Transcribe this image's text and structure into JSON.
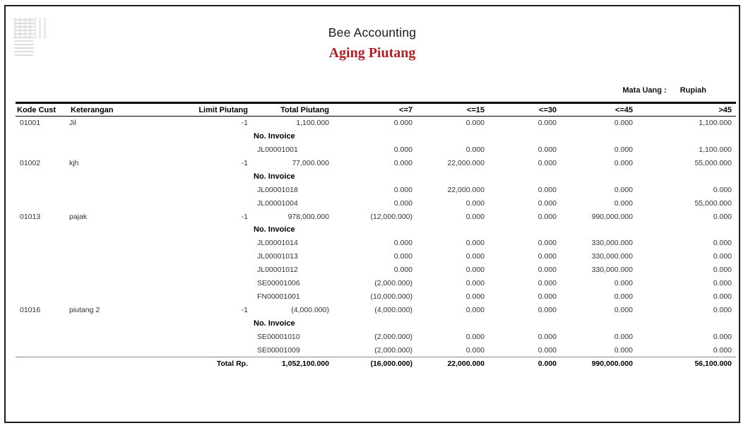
{
  "page": {
    "company": "Bee Accounting",
    "report_title": "Aging Piutang",
    "currency_label": "Mata Uang :",
    "currency_value": "Rupiah",
    "invoice_section_label": "No. Invoice"
  },
  "colors": {
    "report_title_red": "#b01f24",
    "text": "#333333",
    "rule_black": "#000000",
    "rule_gray": "#8a8a8a"
  },
  "table": {
    "headers": [
      "Kode Cust",
      "Keterangan",
      "Limit Piutang",
      "Total Piutang",
      "<=7",
      "<=15",
      "<=30",
      "<=45",
      ">45"
    ],
    "customers": [
      {
        "code": "01001",
        "name": "Jil",
        "limit": "-1",
        "total": "1,100.000",
        "aging": [
          "0.000",
          "0.000",
          "0.000",
          "0.000",
          "1,100.000"
        ],
        "invoices": [
          {
            "no": "JL00001001",
            "aging": [
              "0.000",
              "0.000",
              "0.000",
              "0.000",
              "1,100.000"
            ]
          }
        ]
      },
      {
        "code": "01002",
        "name": "kjh",
        "limit": "-1",
        "total": "77,000.000",
        "aging": [
          "0.000",
          "22,000.000",
          "0.000",
          "0.000",
          "55,000.000"
        ],
        "invoices": [
          {
            "no": "JL00001018",
            "aging": [
              "0.000",
              "22,000.000",
              "0.000",
              "0.000",
              "0.000"
            ]
          },
          {
            "no": "JL00001004",
            "aging": [
              "0.000",
              "0.000",
              "0.000",
              "0.000",
              "55,000.000"
            ]
          }
        ]
      },
      {
        "code": "01013",
        "name": "pajak",
        "limit": "-1",
        "total": "978,000.000",
        "aging": [
          "(12,000.000)",
          "0.000",
          "0.000",
          "990,000.000",
          "0.000"
        ],
        "invoices": [
          {
            "no": "JL00001014",
            "aging": [
              "0.000",
              "0.000",
              "0.000",
              "330,000.000",
              "0.000"
            ]
          },
          {
            "no": "JL00001013",
            "aging": [
              "0.000",
              "0.000",
              "0.000",
              "330,000.000",
              "0.000"
            ]
          },
          {
            "no": "JL00001012",
            "aging": [
              "0.000",
              "0.000",
              "0.000",
              "330,000.000",
              "0.000"
            ]
          },
          {
            "no": "SE00001006",
            "aging": [
              "(2,000.000)",
              "0.000",
              "0.000",
              "0.000",
              "0.000"
            ]
          },
          {
            "no": "FN00001001",
            "aging": [
              "(10,000.000)",
              "0.000",
              "0.000",
              "0.000",
              "0.000"
            ]
          }
        ]
      },
      {
        "code": "01016",
        "name": "piutang 2",
        "limit": "-1",
        "total": "(4,000.000)",
        "aging": [
          "(4,000.000)",
          "0.000",
          "0.000",
          "0.000",
          "0.000"
        ],
        "invoices": [
          {
            "no": "SE00001010",
            "aging": [
              "(2,000.000)",
              "0.000",
              "0.000",
              "0.000",
              "0.000"
            ]
          },
          {
            "no": "SE00001009",
            "aging": [
              "(2,000.000)",
              "0.000",
              "0.000",
              "0.000",
              "0.000"
            ]
          }
        ]
      }
    ],
    "totals": {
      "label": "Total Rp.",
      "total": "1,052,100.000",
      "aging": [
        "(16,000.000)",
        "22,000.000",
        "0.000",
        "990,000.000",
        "56,100.000"
      ]
    }
  }
}
